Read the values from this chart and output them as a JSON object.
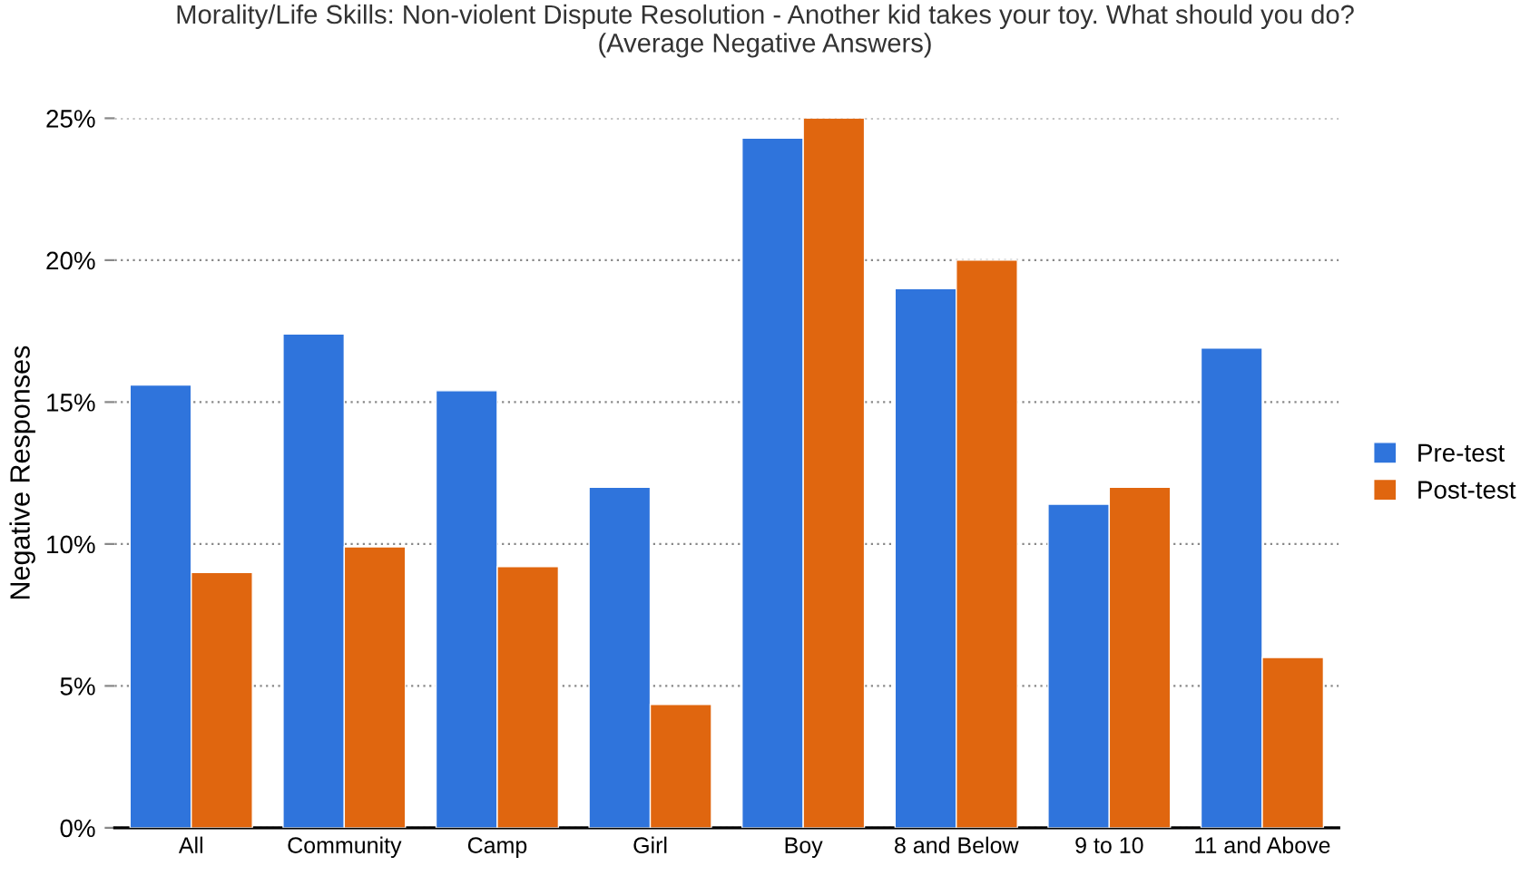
{
  "chart_data": {
    "type": "bar",
    "title": "Morality/Life Skills: Non-violent Dispute Resolution - Another kid takes your toy. What should you do?\n(Average Negative Answers)",
    "ylabel": "Negative Responses",
    "categories": [
      "All",
      "Community",
      "Camp",
      "Girl",
      "Boy",
      "8 and Below",
      "9 to 10",
      "11 and Above"
    ],
    "series": [
      {
        "name": "Pre-test",
        "color": "#2f74dc",
        "values": [
          15.6,
          17.4,
          15.4,
          12.0,
          24.3,
          19.0,
          11.4,
          16.9
        ]
      },
      {
        "name": "Post-test",
        "color": "#e0660f",
        "values": [
          9.0,
          9.9,
          9.2,
          4.35,
          25.0,
          20.0,
          12.0,
          6.0
        ]
      }
    ],
    "ylim": [
      0,
      25
    ],
    "yticks": [
      {
        "value": 0,
        "label": "0%"
      },
      {
        "value": 5,
        "label": "5%"
      },
      {
        "value": 10,
        "label": "10%"
      },
      {
        "value": 15,
        "label": "15%"
      },
      {
        "value": 20,
        "label": "20%"
      },
      {
        "value": 25,
        "label": "25%"
      }
    ],
    "grid": "y",
    "legend": "right"
  }
}
